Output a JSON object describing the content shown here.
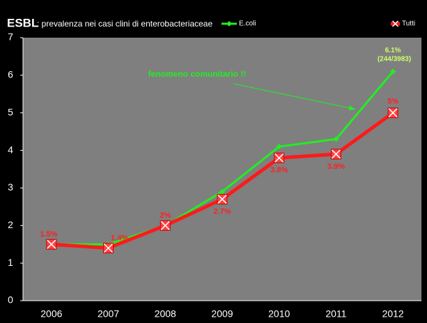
{
  "chart_data": {
    "type": "line",
    "title": "ESBL",
    "subtitle": ": prevalenza nei casi clini di enterobacteriaceae",
    "categories": [
      "2006",
      "2007",
      "2008",
      "2009",
      "2010",
      "2011",
      "2012"
    ],
    "series": [
      {
        "name": "E.coli",
        "color": "#22ee22",
        "values": [
          1.5,
          1.5,
          2.0,
          2.9,
          4.1,
          4.3,
          6.1
        ],
        "value_labels": [
          null,
          null,
          null,
          null,
          null,
          null,
          "6.1%"
        ]
      },
      {
        "name": "Tutti",
        "color": "#ff1a1a",
        "values": [
          1.5,
          1.4,
          2.0,
          2.7,
          3.8,
          3.9,
          5.0
        ],
        "value_labels": [
          "1.5%",
          "1.4%",
          "2%",
          "2.7%",
          "3.8%",
          "3.9%",
          "5%"
        ]
      }
    ],
    "annotations": [
      "fenomeno comunitario !!",
      "(244/3983)"
    ],
    "ylim": [
      0,
      7
    ],
    "yticks": [
      0,
      1,
      2,
      3,
      4,
      5,
      6,
      7
    ],
    "grid": false
  }
}
